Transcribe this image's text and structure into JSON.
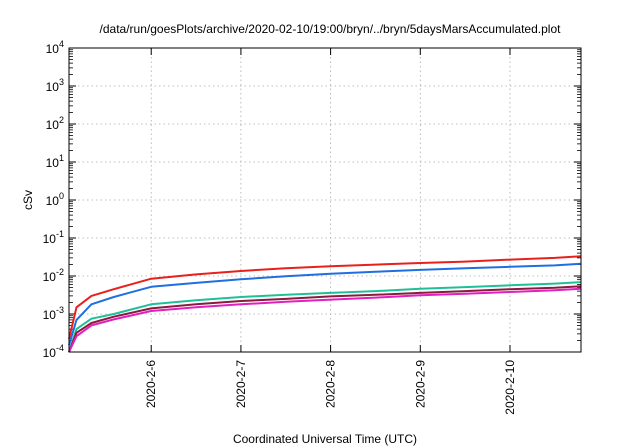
{
  "chart_data": {
    "type": "line",
    "title": "/data/run/goesPlots/archive/2020-02-10/19:00/bryn/../bryn/5daysMarsAccumulated.plot",
    "xlabel": "Coordinated Universal Time (UTC)",
    "ylabel": "cSv",
    "yscale": "log",
    "ylim": [
      0.0001,
      10000
    ],
    "xlim": [
      "2020-02-05T02:00",
      "2020-02-10T19:00"
    ],
    "x_tick_labels": [
      "2020-2-6",
      "2020-2-7",
      "2020-2-8",
      "2020-2-9",
      "2020-2-10"
    ],
    "y_tick_labels": [
      {
        "base": "10",
        "exp": "-4"
      },
      {
        "base": "10",
        "exp": "-3"
      },
      {
        "base": "10",
        "exp": "-2"
      },
      {
        "base": "10",
        "exp": "-1"
      },
      {
        "base": "10",
        "exp": "0"
      },
      {
        "base": "10",
        "exp": "1"
      },
      {
        "base": "10",
        "exp": "2"
      },
      {
        "base": "10",
        "exp": "3"
      },
      {
        "base": "10",
        "exp": "4"
      }
    ],
    "grid": true,
    "legend": "none",
    "series": [
      {
        "color": "#e8201c",
        "x": [
          "2020-02-05T02:00",
          "2020-02-05T04:00",
          "2020-02-05T08:00",
          "2020-02-05T14:00",
          "2020-02-06T00:00",
          "2020-02-06T12:00",
          "2020-02-07T00:00",
          "2020-02-07T12:00",
          "2020-02-08T00:00",
          "2020-02-08T12:00",
          "2020-02-09T00:00",
          "2020-02-09T12:00",
          "2020-02-10T00:00",
          "2020-02-10T12:00",
          "2020-02-10T19:00"
        ],
        "y": [
          0.00022,
          0.0015,
          0.003,
          0.0045,
          0.0085,
          0.011,
          0.0135,
          0.016,
          0.018,
          0.02,
          0.022,
          0.024,
          0.027,
          0.03,
          0.033
        ]
      },
      {
        "color": "#1f6fe0",
        "x": [
          "2020-02-05T02:00",
          "2020-02-05T04:00",
          "2020-02-05T08:00",
          "2020-02-05T14:00",
          "2020-02-06T00:00",
          "2020-02-06T12:00",
          "2020-02-07T00:00",
          "2020-02-07T12:00",
          "2020-02-08T00:00",
          "2020-02-08T12:00",
          "2020-02-09T00:00",
          "2020-02-09T12:00",
          "2020-02-10T00:00",
          "2020-02-10T12:00",
          "2020-02-10T19:00"
        ],
        "y": [
          0.00015,
          0.0007,
          0.0018,
          0.0028,
          0.0052,
          0.0066,
          0.0082,
          0.0098,
          0.0115,
          0.013,
          0.0145,
          0.016,
          0.0175,
          0.019,
          0.021
        ]
      },
      {
        "color": "#1fbf9a",
        "x": [
          "2020-02-05T02:00",
          "2020-02-05T04:00",
          "2020-02-05T08:00",
          "2020-02-05T14:00",
          "2020-02-06T00:00",
          "2020-02-06T12:00",
          "2020-02-07T00:00",
          "2020-02-07T12:00",
          "2020-02-08T00:00",
          "2020-02-08T12:00",
          "2020-02-09T00:00",
          "2020-02-09T12:00",
          "2020-02-10T00:00",
          "2020-02-10T12:00",
          "2020-02-10T19:00"
        ],
        "y": [
          0.0001,
          0.0004,
          0.00075,
          0.001,
          0.0018,
          0.0023,
          0.0028,
          0.0032,
          0.0036,
          0.004,
          0.0046,
          0.0051,
          0.0057,
          0.0063,
          0.0069
        ]
      },
      {
        "color": "#8b1a3c",
        "x": [
          "2020-02-05T02:00",
          "2020-02-05T04:00",
          "2020-02-05T08:00",
          "2020-02-05T14:00",
          "2020-02-06T00:00",
          "2020-02-06T12:00",
          "2020-02-07T00:00",
          "2020-02-07T12:00",
          "2020-02-08T00:00",
          "2020-02-08T12:00",
          "2020-02-09T00:00",
          "2020-02-09T12:00",
          "2020-02-10T00:00",
          "2020-02-10T12:00",
          "2020-02-10T19:00"
        ],
        "y": [
          0.0001,
          0.00032,
          0.00058,
          0.00085,
          0.0014,
          0.0018,
          0.0022,
          0.0025,
          0.0029,
          0.0032,
          0.0036,
          0.004,
          0.0045,
          0.0049,
          0.0054
        ]
      },
      {
        "color": "#e020c0",
        "x": [
          "2020-02-05T02:00",
          "2020-02-05T04:00",
          "2020-02-05T08:00",
          "2020-02-05T14:00",
          "2020-02-06T00:00",
          "2020-02-06T12:00",
          "2020-02-07T00:00",
          "2020-02-07T12:00",
          "2020-02-08T00:00",
          "2020-02-08T12:00",
          "2020-02-09T00:00",
          "2020-02-09T12:00",
          "2020-02-10T00:00",
          "2020-02-10T12:00",
          "2020-02-10T19:00"
        ],
        "y": [
          0.0001,
          0.00026,
          0.0005,
          0.00072,
          0.0012,
          0.0015,
          0.0018,
          0.0021,
          0.0024,
          0.0027,
          0.0031,
          0.0034,
          0.0038,
          0.0042,
          0.0046
        ]
      }
    ]
  }
}
